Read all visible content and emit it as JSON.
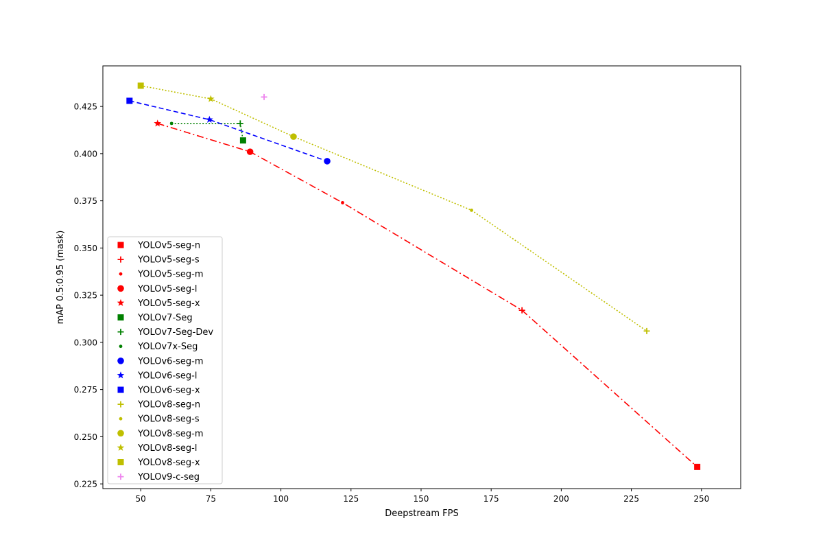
{
  "chart_data": {
    "type": "scatter",
    "title": "",
    "xlabel": "Deepstream FPS",
    "ylabel": "mAP 0.5:0.95 (mask)",
    "xlim": [
      36.5,
      264
    ],
    "ylim": [
      0.2225,
      0.4465
    ],
    "x_ticks": [
      50,
      75,
      100,
      125,
      150,
      175,
      200,
      225,
      250
    ],
    "y_ticks": [
      0.225,
      0.25,
      0.275,
      0.3,
      0.325,
      0.35,
      0.375,
      0.4,
      0.425
    ],
    "grid": false,
    "legend_position": "lower-left",
    "lines": [
      {
        "color": "#ff0000",
        "style": "dashdot",
        "x": [
          56,
          89,
          122,
          186,
          248.5
        ],
        "y": [
          0.416,
          0.401,
          0.374,
          0.317,
          0.234
        ]
      },
      {
        "color": "#008000",
        "style": "dotted",
        "x": [
          61,
          85.5,
          86.5
        ],
        "y": [
          0.416,
          0.416,
          0.407
        ]
      },
      {
        "color": "#0000ff",
        "style": "dashed",
        "x": [
          46,
          74.5,
          116.5
        ],
        "y": [
          0.428,
          0.418,
          0.396
        ]
      },
      {
        "color": "#bfbf00",
        "style": "dotted",
        "x": [
          50,
          75,
          104.5,
          168,
          230.5
        ],
        "y": [
          0.436,
          0.429,
          0.409,
          0.37,
          0.306
        ]
      }
    ],
    "series": [
      {
        "name": "YOLOv5-seg-n",
        "color": "#ff0000",
        "marker": "square",
        "x": [
          248.5
        ],
        "y": [
          0.234
        ]
      },
      {
        "name": "YOLOv5-seg-s",
        "color": "#ff0000",
        "marker": "plus",
        "x": [
          186
        ],
        "y": [
          0.317
        ]
      },
      {
        "name": "YOLOv5-seg-m",
        "color": "#ff0000",
        "marker": "point",
        "x": [
          122
        ],
        "y": [
          0.374
        ]
      },
      {
        "name": "YOLOv5-seg-l",
        "color": "#ff0000",
        "marker": "circle",
        "x": [
          89
        ],
        "y": [
          0.401
        ]
      },
      {
        "name": "YOLOv5-seg-x",
        "color": "#ff0000",
        "marker": "star",
        "x": [
          56
        ],
        "y": [
          0.416
        ]
      },
      {
        "name": "YOLOv7-Seg",
        "color": "#008000",
        "marker": "square",
        "x": [
          86.5
        ],
        "y": [
          0.407
        ]
      },
      {
        "name": "YOLOv7-Seg-Dev",
        "color": "#008000",
        "marker": "plus",
        "x": [
          85.5
        ],
        "y": [
          0.416
        ]
      },
      {
        "name": "YOLOv7x-Seg",
        "color": "#008000",
        "marker": "point",
        "x": [
          61
        ],
        "y": [
          0.416
        ]
      },
      {
        "name": "YOLOv6-seg-m",
        "color": "#0000ff",
        "marker": "circle",
        "x": [
          116.5
        ],
        "y": [
          0.396
        ]
      },
      {
        "name": "YOLOv6-seg-l",
        "color": "#0000ff",
        "marker": "star",
        "x": [
          74.5
        ],
        "y": [
          0.418
        ]
      },
      {
        "name": "YOLOv6-seg-x",
        "color": "#0000ff",
        "marker": "square",
        "x": [
          46
        ],
        "y": [
          0.428
        ]
      },
      {
        "name": "YOLOv8-seg-n",
        "color": "#bfbf00",
        "marker": "plus",
        "x": [
          230.5
        ],
        "y": [
          0.306
        ]
      },
      {
        "name": "YOLOv8-seg-s",
        "color": "#bfbf00",
        "marker": "point",
        "x": [
          168
        ],
        "y": [
          0.37
        ]
      },
      {
        "name": "YOLOv8-seg-m",
        "color": "#bfbf00",
        "marker": "circle",
        "x": [
          104.5
        ],
        "y": [
          0.409
        ]
      },
      {
        "name": "YOLOv8-seg-l",
        "color": "#bfbf00",
        "marker": "star",
        "x": [
          75
        ],
        "y": [
          0.429
        ]
      },
      {
        "name": "YOLOv8-seg-x",
        "color": "#bfbf00",
        "marker": "square",
        "x": [
          50
        ],
        "y": [
          0.436
        ]
      },
      {
        "name": "YOLOv9-c-seg",
        "color": "#ee82ee",
        "marker": "plus",
        "x": [
          94
        ],
        "y": [
          0.43
        ]
      }
    ]
  }
}
